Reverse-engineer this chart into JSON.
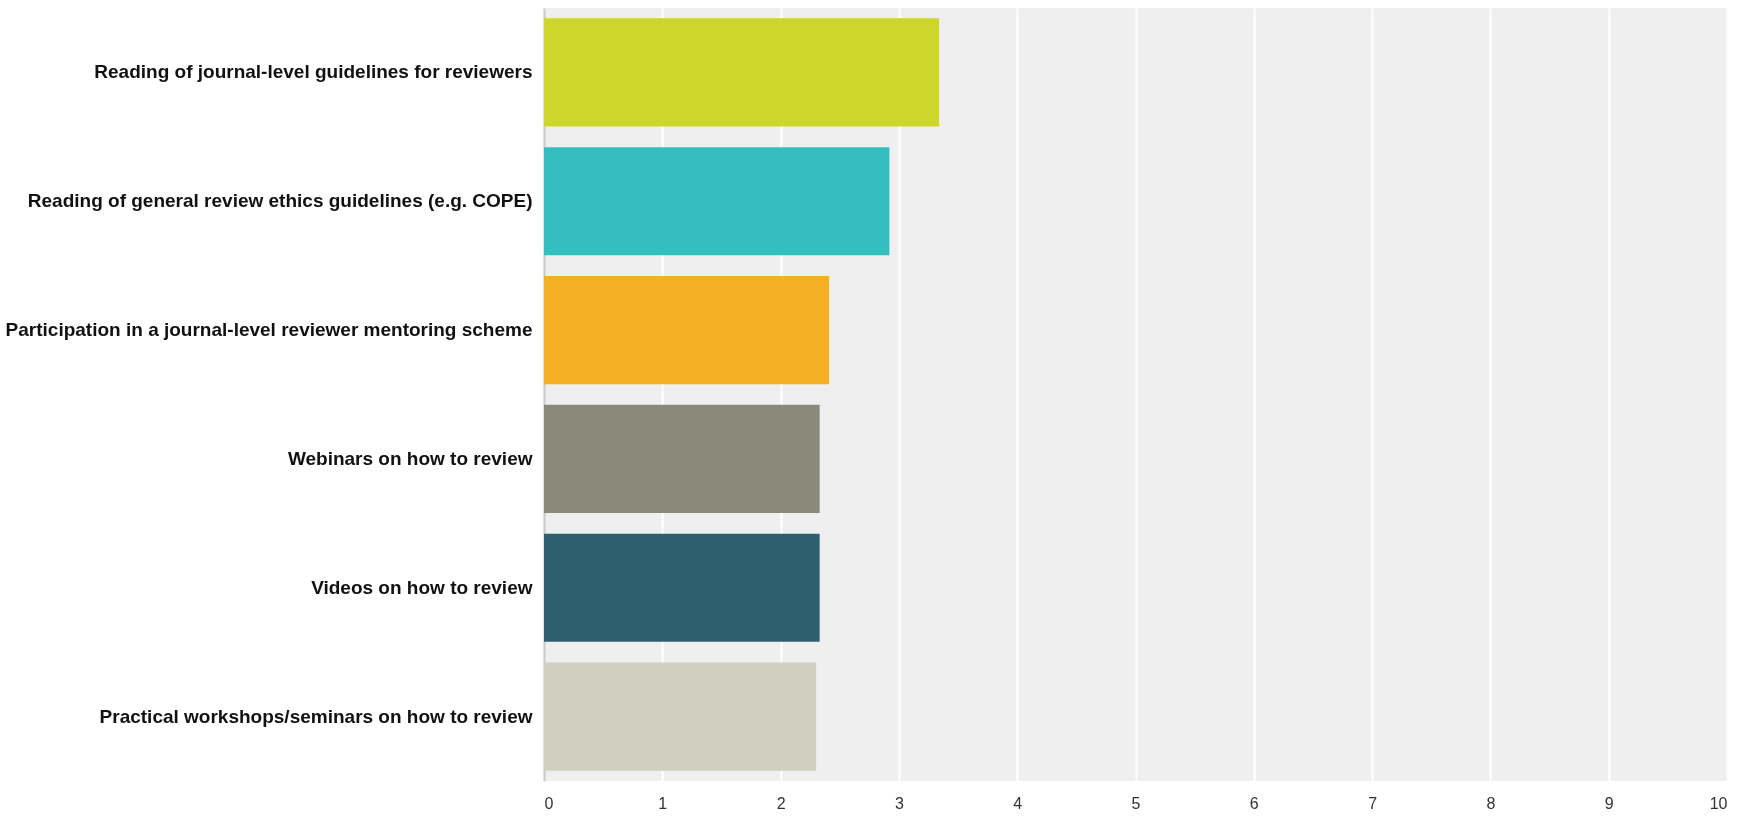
{
  "chart_data": {
    "type": "bar",
    "orientation": "horizontal",
    "categories": [
      "Reading of journal-level guidelines for reviewers",
      "Reading of general review ethics guidelines (e.g. COPE)",
      "Participation in a journal-level reviewer mentoring scheme",
      "Webinars on how to review",
      "Videos on how to review",
      "Practical workshops/seminars on how to review"
    ],
    "values": [
      3.34,
      2.92,
      2.41,
      2.33,
      2.33,
      2.3
    ],
    "colors": [
      "#cfd62a",
      "#35bec0",
      "#f5af22",
      "#8a8a7a",
      "#2e5f6e",
      "#d0cfc0"
    ],
    "xlim": [
      0,
      10
    ],
    "xticks": [
      0,
      1,
      2,
      3,
      4,
      5,
      6,
      7,
      8,
      9,
      10
    ],
    "grid": "x"
  }
}
